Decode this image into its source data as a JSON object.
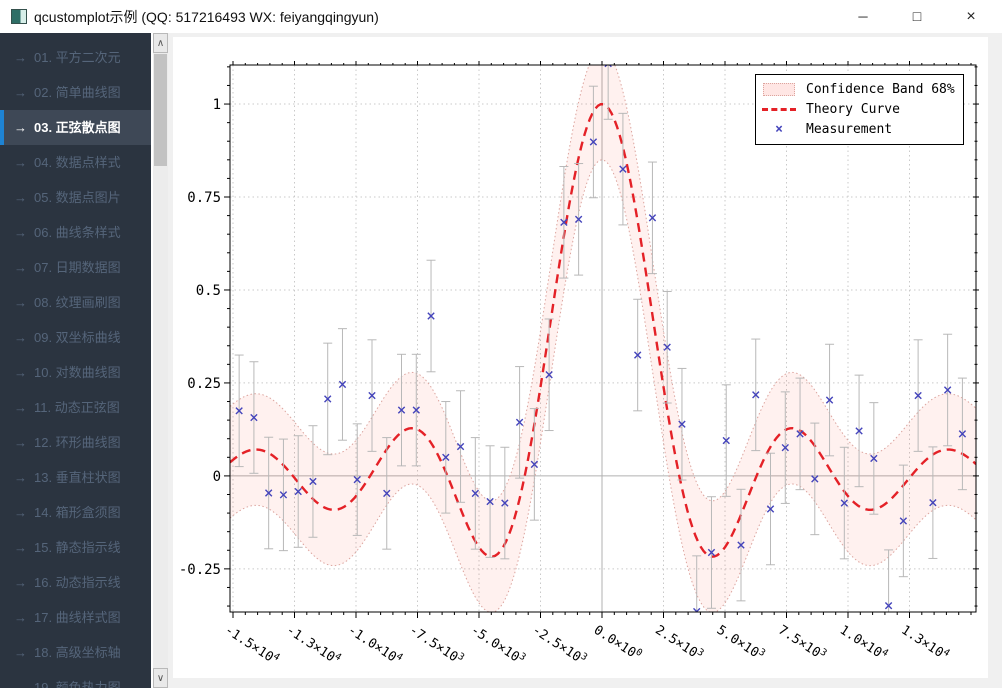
{
  "window": {
    "title": "qcustomplot示例 (QQ: 517216493 WX: feiyangqingyun)",
    "controls": {
      "minimize": "─",
      "maximize": "□",
      "close": "×"
    }
  },
  "icons": {
    "app_icon": "qcustomplot-logo",
    "scroll_up_chevron": "∧",
    "scroll_down_chevron": "∨",
    "item_arrow": "→"
  },
  "colors": {
    "sidebar_bg": "#2b3440",
    "sidebar_text": "#55657a",
    "sidebar_selected_bg": "#3e4856",
    "sidebar_selected_text": "#ffffff",
    "accent_bar": "#1e83d3",
    "theory_red": "#e42127",
    "measurement_blue": "#4444bb",
    "band_fill": "rgba(255,50,30,0.07)",
    "band_edge": "#dca49e",
    "errorbar_gray": "#b8b8b8",
    "grid_gray": "#c9c9c9",
    "zero_line_gray": "#b0b0b0"
  },
  "sidebar": {
    "selected_index": 2,
    "items": [
      "01. 平方二次元",
      "02. 简单曲线图",
      "03. 正弦散点图",
      "04. 数据点样式",
      "05. 数据点图片",
      "06. 曲线条样式",
      "07. 日期数据图",
      "08. 纹理画刷图",
      "09. 双坐标曲线",
      "10. 对数曲线图",
      "11. 动态正弦图",
      "12. 环形曲线图",
      "13. 垂直柱状图",
      "14. 箱形盒须图",
      "15. 静态指示线",
      "16. 动态指示线",
      "17. 曲线样式图",
      "18. 高级坐标轴",
      "19. 颜色热力图"
    ]
  },
  "legend": {
    "entries": [
      {
        "label": "Confidence Band 68%",
        "swatch": "band"
      },
      {
        "label": "Theory Curve",
        "swatch": "dashed-line"
      },
      {
        "label": "Measurement",
        "swatch": "cross"
      }
    ]
  },
  "chart_data": {
    "type": "line",
    "title": "",
    "xlabel": "",
    "ylabel": "",
    "x_range": [
      -15122,
      15203
    ],
    "y_range": [
      -0.366,
      1.105
    ],
    "grid": "dotted, zero lines solid",
    "legend_position": "top-right inset",
    "x_ticks": [
      {
        "value": -15000,
        "label": "-1.5×10^4"
      },
      {
        "value": -12500,
        "label": "-1.3×10^4"
      },
      {
        "value": -10000,
        "label": "-1.0×10^4"
      },
      {
        "value": -7500,
        "label": "-7.5×10^3"
      },
      {
        "value": -5000,
        "label": "-5.0×10^3"
      },
      {
        "value": -2500,
        "label": "-2.5×10^3"
      },
      {
        "value": 0,
        "label": "0.0×10^0"
      },
      {
        "value": 2500,
        "label": "2.5×10^3"
      },
      {
        "value": 5000,
        "label": "5.0×10^3"
      },
      {
        "value": 7500,
        "label": "7.5×10^3"
      },
      {
        "value": 10000,
        "label": "1.0×10^4"
      },
      {
        "value": 12500,
        "label": "1.3×10^4"
      }
    ],
    "y_ticks": [
      {
        "value": 1,
        "label": "1"
      },
      {
        "value": 0.75,
        "label": "0.75"
      },
      {
        "value": 0.5,
        "label": "0.5"
      },
      {
        "value": 0.25,
        "label": "0.25"
      },
      {
        "value": 0,
        "label": "0"
      },
      {
        "value": -0.25,
        "label": "-0.25"
      }
    ],
    "x_subtick_step": 500,
    "y_subtick_step": 0.05,
    "series": [
      {
        "name": "Confidence Band 68%",
        "kind": "band",
        "definition": "sinc(x/1000) ± 0.15",
        "offset": 0.15
      },
      {
        "name": "Theory Curve",
        "kind": "curve",
        "definition": "y = sin(x/1000)/(x/1000)",
        "x_scale": 1000,
        "dash": [
          9,
          6
        ]
      },
      {
        "name": "Measurement",
        "kind": "scatter",
        "marker": "cross",
        "y_error": 0.15,
        "points": [
          [
            -14750,
            0.175
          ],
          [
            -14150,
            0.157
          ],
          [
            -13550,
            -0.046
          ],
          [
            -12950,
            -0.051
          ],
          [
            -12350,
            -0.042
          ],
          [
            -11750,
            -0.015
          ],
          [
            -11150,
            0.207
          ],
          [
            -10550,
            0.246
          ],
          [
            -9950,
            -0.01
          ],
          [
            -9350,
            0.216
          ],
          [
            -8750,
            -0.047
          ],
          [
            -8150,
            0.177
          ],
          [
            -7550,
            0.177
          ],
          [
            -6950,
            0.43
          ],
          [
            -6350,
            0.05
          ],
          [
            -5750,
            0.079
          ],
          [
            -5150,
            -0.047
          ],
          [
            -4550,
            -0.069
          ],
          [
            -3950,
            -0.073
          ],
          [
            -3350,
            0.144
          ],
          [
            -2750,
            0.031
          ],
          [
            -2150,
            0.272
          ],
          [
            -1550,
            0.682
          ],
          [
            -950,
            0.69
          ],
          [
            -350,
            0.898
          ],
          [
            250,
            1.109
          ],
          [
            850,
            0.825
          ],
          [
            1450,
            0.325
          ],
          [
            2050,
            0.694
          ],
          [
            2650,
            0.346
          ],
          [
            3250,
            0.139
          ],
          [
            3850,
            -0.365
          ],
          [
            4450,
            -0.206
          ],
          [
            5050,
            0.095
          ],
          [
            5650,
            -0.186
          ],
          [
            6250,
            0.218
          ],
          [
            6850,
            -0.089
          ],
          [
            7450,
            0.076
          ],
          [
            8050,
            0.113
          ],
          [
            8650,
            -0.008
          ],
          [
            9250,
            0.204
          ],
          [
            9850,
            -0.073
          ],
          [
            10450,
            0.121
          ],
          [
            11050,
            0.047
          ],
          [
            11650,
            -0.349
          ],
          [
            12250,
            -0.121
          ],
          [
            12850,
            0.216
          ],
          [
            13450,
            -0.072
          ],
          [
            14050,
            0.231
          ],
          [
            14650,
            0.113
          ]
        ]
      }
    ]
  }
}
